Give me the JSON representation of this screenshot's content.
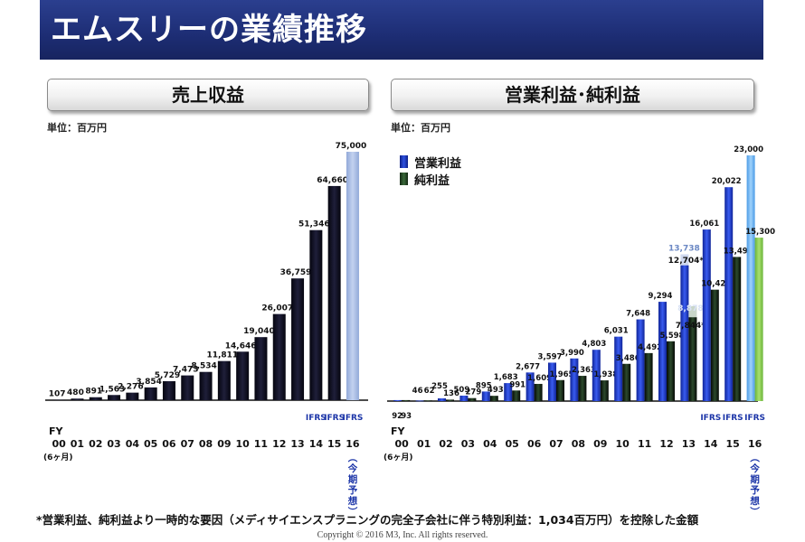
{
  "page": {
    "title": "エムスリーの業績推移",
    "footnote": "*営業利益、純利益より一時的な要因（メディサイエンスプラニングの完全子会社に伴う特別利益：1,034百万円）を控除した金額",
    "copyright": "Copyright © 2016  M3, Inc.  All rights reserved."
  },
  "colors": {
    "title_bg": "#1d2d74",
    "revenue_bar": "#0d0d22",
    "revenue_forecast": "#a9bde3",
    "op_bar": "#1f3bc4",
    "op_forecast": "#6eb5ef",
    "net_bar": "#0b0f0b",
    "net_forecast": "#8ccf55",
    "adj_label": "#6b88c4"
  },
  "chart_data": [
    {
      "type": "bar",
      "title": "売上収益",
      "unit": "単位：百万円",
      "x_prefix": "FY",
      "categories": [
        "00",
        "01",
        "02",
        "03",
        "04",
        "05",
        "06",
        "07",
        "08",
        "09",
        "10",
        "11",
        "12",
        "13",
        "14",
        "15",
        "16"
      ],
      "category_notes": {
        "00": "(6ヶ月)",
        "16": "(今期予想)"
      },
      "standard_labels": {
        "14": "IFRS",
        "15": "IFRS",
        "16": "IFRS"
      },
      "series": [
        {
          "values": [
            107,
            480,
            891,
            1563,
            2276,
            3854,
            5729,
            7473,
            8534,
            11811,
            14646,
            19040,
            26007,
            36759,
            51346,
            64660,
            75000
          ]
        }
      ],
      "value_labels": [
        "107",
        "480",
        "891",
        "1,563",
        "2,276",
        "3,854",
        "5,729",
        "7,473",
        "8,534",
        "11,811",
        "14,646",
        "19,040",
        "26,007",
        "36,759",
        "51,346",
        "64,660",
        "75,000"
      ],
      "forecast_index": 16,
      "ylim": [
        0,
        75000
      ]
    },
    {
      "type": "bar",
      "title": "営業利益･純利益",
      "unit": "単位：百万円",
      "x_prefix": "FY",
      "categories": [
        "00",
        "01",
        "02",
        "03",
        "04",
        "05",
        "06",
        "07",
        "08",
        "09",
        "10",
        "11",
        "12",
        "13",
        "14",
        "15",
        "16"
      ],
      "category_notes": {
        "00": "(6ヶ月)",
        "16": "(今期予想)"
      },
      "standard_labels": {
        "14": "IFRS",
        "15": "IFRS",
        "16": "IFRS"
      },
      "series": [
        {
          "name": "営業利益",
          "values": [
            92,
            46,
            255,
            509,
            895,
            1683,
            2677,
            3597,
            3990,
            4803,
            6031,
            7648,
            9294,
            13738,
            16061,
            20022,
            23000
          ],
          "labels": [
            "92",
            "46",
            "255",
            "509",
            "895",
            "1,683",
            "2,677",
            "3,597",
            "3,990",
            "4,803",
            "6,031",
            "7,648",
            "9,294",
            "13,738",
            "16,061",
            "20,022",
            "23,000"
          ]
        },
        {
          "name": "純利益",
          "values": [
            93,
            62,
            136,
            279,
            493,
            991,
            1609,
            1965,
            2363,
            1938,
            3486,
            4492,
            5598,
            8878,
            10428,
            13493,
            15300
          ],
          "labels": [
            "93",
            "62",
            "136",
            "279",
            "493",
            "991",
            "1,609",
            "1,965",
            "2,363",
            "1,938",
            "3,486",
            "4,492",
            "5,598",
            "8,878",
            "10,428",
            "13,493",
            "15,300"
          ]
        }
      ],
      "adjusted_fy13": {
        "営業利益": {
          "value": 12704,
          "label": "12,704*"
        },
        "純利益": {
          "value": 7844,
          "label": "7,844*"
        }
      },
      "forecast_index": 16,
      "ylim": [
        0,
        23000
      ]
    }
  ]
}
